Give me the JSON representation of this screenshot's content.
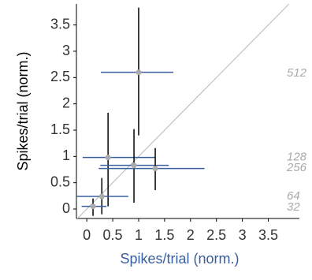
{
  "chart_data": {
    "type": "scatter",
    "x_label": "Spikes/trial (norm.)",
    "y_label": "Spikes/trial (norm.)",
    "xlim": [
      -0.2,
      4.1
    ],
    "ylim": [
      -0.18,
      3.9
    ],
    "xticks": [
      0,
      0.5,
      1,
      1.5,
      2,
      2.5,
      3,
      3.5
    ],
    "yticks": [
      0,
      0.5,
      1,
      1.5,
      2,
      2.5,
      3,
      3.5
    ],
    "identity_line": true,
    "identity_color": "#c0c0c0",
    "point_color": "#aaaaaa",
    "x_error_color": "#3a5fa0",
    "y_error_color": "#000000",
    "label_color": "#aaaaaa",
    "x": [
      1.0,
      0.41,
      0.91,
      1.32,
      0.29,
      0.12
    ],
    "y": [
      2.6,
      0.98,
      0.83,
      0.77,
      0.24,
      0.05
    ],
    "x_low": [
      0.27,
      -0.08,
      0.26,
      0.23,
      -0.2,
      -0.1
    ],
    "x_high": [
      1.67,
      1.32,
      1.58,
      2.27,
      0.8,
      0.38
    ],
    "y_low": [
      1.4,
      0.05,
      0.12,
      0.36,
      -0.1,
      -0.13
    ],
    "y_high": [
      3.83,
      1.83,
      1.52,
      1.16,
      0.59,
      0.2
    ],
    "annotations": [
      {
        "text": "512",
        "y": 2.58
      },
      {
        "text": "128",
        "y": 0.98
      },
      {
        "text": "256",
        "y": 0.78
      },
      {
        "text": "64",
        "y": 0.24
      },
      {
        "text": "32",
        "y": 0.03
      }
    ]
  }
}
